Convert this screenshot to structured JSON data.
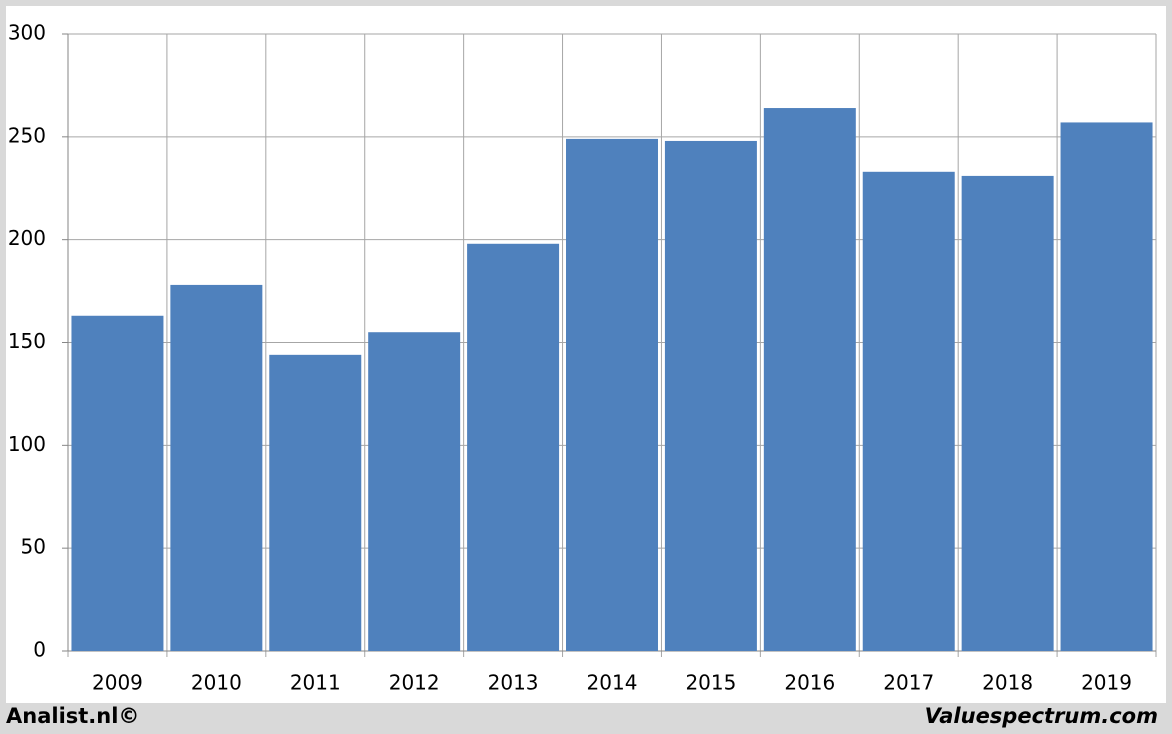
{
  "chart_data": {
    "type": "bar",
    "categories": [
      "2009",
      "2010",
      "2011",
      "2012",
      "2013",
      "2014",
      "2015",
      "2016",
      "2017",
      "2018",
      "2019"
    ],
    "values": [
      163,
      178,
      144,
      155,
      198,
      249,
      248,
      264,
      233,
      231,
      257
    ],
    "color": "#4f81bd",
    "ylim": [
      0,
      300
    ],
    "yticks": [
      0,
      50,
      100,
      150,
      200,
      250,
      300
    ],
    "grid": true
  },
  "footer": {
    "left": "Analist.nl©",
    "right": "Valuespectrum.com"
  }
}
